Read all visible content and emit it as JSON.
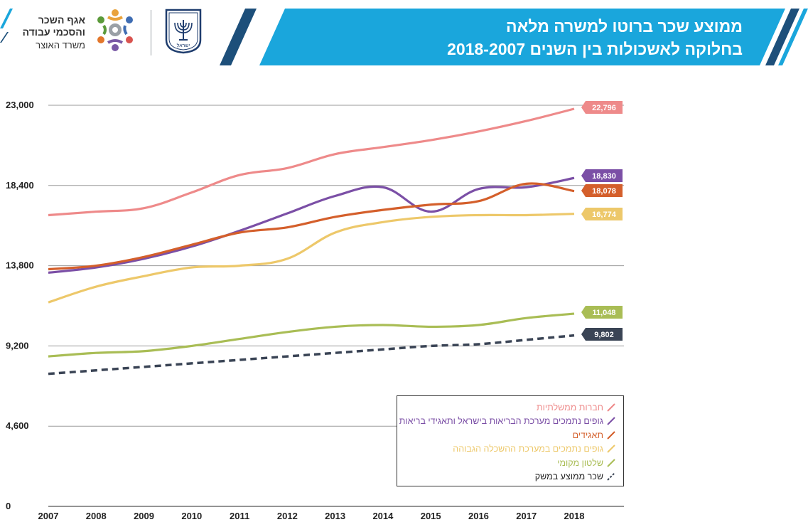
{
  "header": {
    "title_line1": "ממוצע שכר ברוטו למשרה מלאה",
    "title_line2": "בחלוקה לאשכולות בין השנים 2018-2007",
    "banner_color": "#1aa6dc",
    "stripe_color": "#1d4f7a"
  },
  "logos": {
    "department_line1": "אגף השכר",
    "department_line2": "והסכמי עבודה",
    "ministry": "משרד האוצר",
    "emblem_text": "ישראל"
  },
  "chart_data": {
    "type": "line",
    "x": [
      2007,
      2008,
      2009,
      2010,
      2011,
      2012,
      2013,
      2014,
      2015,
      2016,
      2017,
      2018
    ],
    "yticks": [
      0,
      4600,
      9200,
      13800,
      18400,
      23000
    ],
    "ytick_labels": [
      "0",
      "4,600",
      "9,200",
      "13,800",
      "18,400",
      "23,000"
    ],
    "ylim": [
      0,
      23000
    ],
    "grid": true,
    "legend_position": "bottom-right",
    "series": [
      {
        "name": "חברות ממשלתיות",
        "color": "#ee8a8a",
        "dashed": false,
        "values": [
          16700,
          16900,
          17100,
          18000,
          19000,
          19400,
          20200,
          20600,
          21000,
          21500,
          22100,
          22796
        ],
        "end_label": "22,796"
      },
      {
        "name": "גופים נתמכים מערכת הבריאות בישראל ותאגידי בריאות",
        "color": "#7b4fa6",
        "dashed": false,
        "values": [
          13400,
          13700,
          14200,
          14900,
          15800,
          16800,
          17800,
          18300,
          16900,
          18200,
          18300,
          18830
        ],
        "end_label": "18,830"
      },
      {
        "name": "תאגידים",
        "color": "#d45f2b",
        "dashed": false,
        "values": [
          13600,
          13800,
          14300,
          15000,
          15700,
          16000,
          16600,
          17000,
          17300,
          17500,
          18500,
          18078
        ],
        "end_label": "18,078"
      },
      {
        "name": "גופים נתמכים במערכת ההשכלה הגבוהה",
        "color": "#edc86a",
        "dashed": false,
        "values": [
          11700,
          12600,
          13200,
          13700,
          13800,
          14200,
          15700,
          16300,
          16600,
          16700,
          16700,
          16774
        ],
        "end_label": "16,774"
      },
      {
        "name": "שלטון מקומי",
        "color": "#a9bd55",
        "dashed": false,
        "values": [
          8600,
          8800,
          8900,
          9200,
          9600,
          10000,
          10300,
          10400,
          10300,
          10400,
          10800,
          11048
        ],
        "end_label": "11,048"
      },
      {
        "name": "שכר ממוצע במשק",
        "color": "#3a4455",
        "dashed": true,
        "values": [
          7600,
          7800,
          8000,
          8200,
          8400,
          8600,
          8800,
          9000,
          9200,
          9300,
          9550,
          9802
        ],
        "end_label": "9,802"
      }
    ]
  }
}
